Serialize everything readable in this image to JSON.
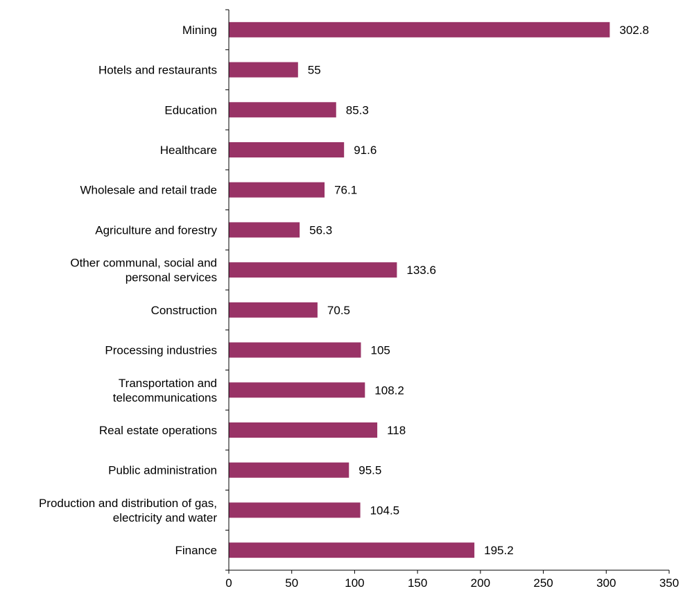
{
  "colors": {
    "bar": "#993366",
    "axis": "#000000",
    "background": "#ffffff"
  },
  "chart_data": {
    "type": "bar",
    "orientation": "horizontal",
    "title": "",
    "xlabel": "",
    "ylabel": "",
    "xlim": [
      0,
      350
    ],
    "x_ticks": [
      "0",
      "50",
      "100",
      "150",
      "200",
      "250",
      "300",
      "350"
    ],
    "grid": false,
    "legend": "none",
    "categories": [
      [
        "Mining"
      ],
      [
        "Hotels and restaurants"
      ],
      [
        "Education"
      ],
      [
        "Healthcare"
      ],
      [
        "Wholesale and retail trade"
      ],
      [
        "Agriculture and forestry"
      ],
      [
        "Other communal, social and",
        "personal services"
      ],
      [
        "Construction"
      ],
      [
        "Processing industries"
      ],
      [
        "Transportation and",
        "telecommunications"
      ],
      [
        "Real estate operations"
      ],
      [
        "Public administration"
      ],
      [
        "Production and distribution of gas,",
        "electricity and water"
      ],
      [
        "Finance"
      ]
    ],
    "values": [
      302.8,
      55,
      85.3,
      91.6,
      76.1,
      56.3,
      133.6,
      70.5,
      105,
      108.2,
      118,
      95.5,
      104.5,
      195.2
    ],
    "value_labels": [
      "302.8",
      "55",
      "85.3",
      "91.6",
      "76.1",
      "56.3",
      "133.6",
      "70.5",
      "105",
      "108.2",
      "118",
      "95.5",
      "104.5",
      "195.2"
    ]
  }
}
